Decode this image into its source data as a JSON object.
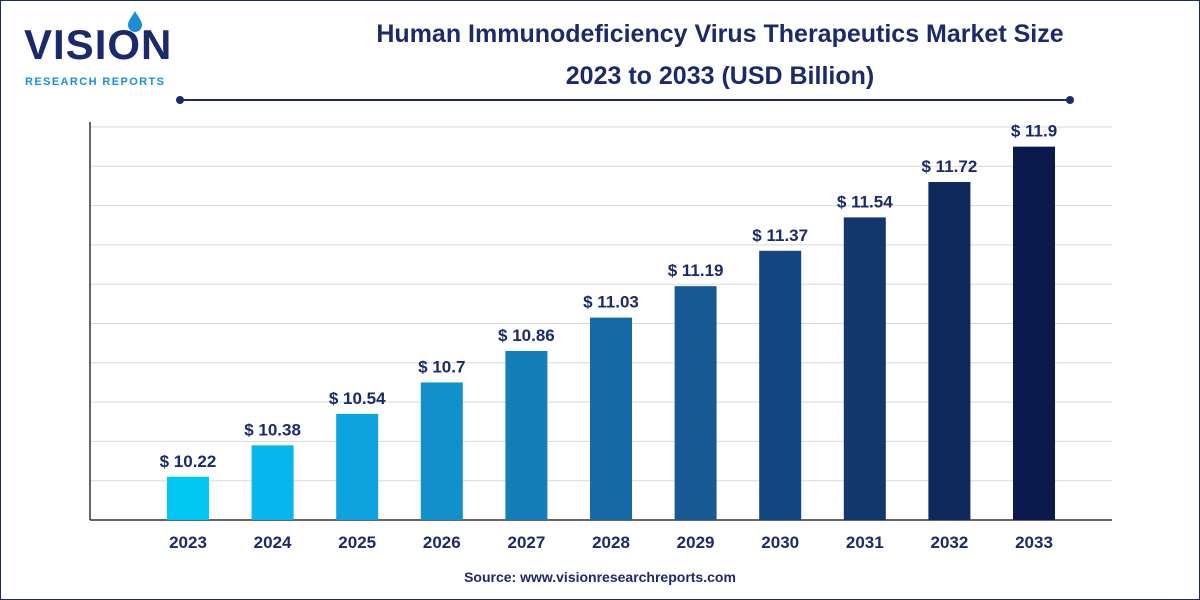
{
  "logo": {
    "word": "VISION",
    "subtitle": "RESEARCH REPORTS"
  },
  "title_line1": "Human Immunodeficiency Virus Therapeutics Market Size",
  "title_line2": "2023 to 2033 (USD Billion)",
  "source": "Source: www.visionresearchreports.com",
  "chart_data": {
    "type": "bar",
    "categories": [
      "2023",
      "2024",
      "2025",
      "2026",
      "2027",
      "2028",
      "2029",
      "2030",
      "2031",
      "2032",
      "2033"
    ],
    "values": [
      10.22,
      10.38,
      10.54,
      10.7,
      10.86,
      11.03,
      11.19,
      11.37,
      11.54,
      11.72,
      11.9
    ],
    "value_labels": [
      "$ 10.22",
      "$ 10.38",
      "$ 10.54",
      "$ 10.7",
      "$ 10.86",
      "$ 11.03",
      "$ 11.19",
      "$ 11.37",
      "$ 11.54",
      "$ 11.72",
      "$ 11.9"
    ],
    "ylim": [
      10,
      12
    ],
    "grid": true,
    "bar_colors": [
      "#00c8f5",
      "#07b6ec",
      "#0ea3de",
      "#1290cc",
      "#157eba",
      "#166ba7",
      "#165994",
      "#144781",
      "#12376e",
      "#0f285c",
      "#0a1a4c"
    ]
  }
}
